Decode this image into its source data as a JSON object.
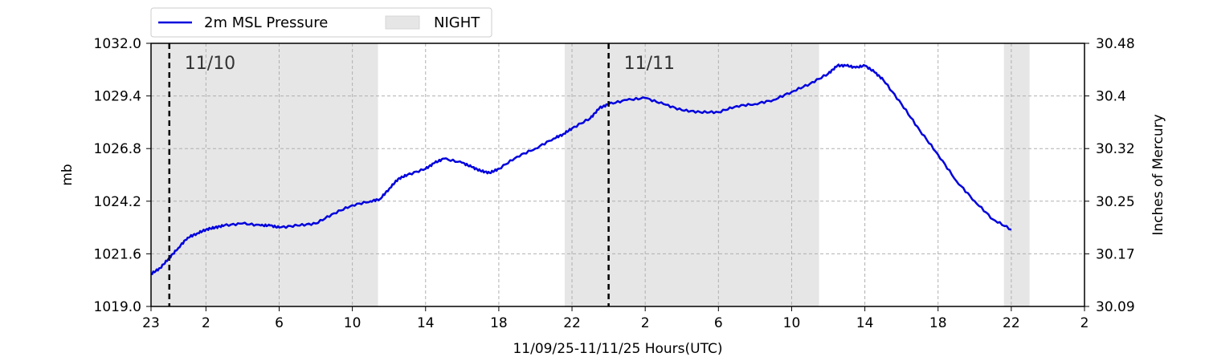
{
  "chart_data": {
    "type": "line",
    "title": "",
    "xlabel": "11/09/25-11/11/25  Hours(UTC)",
    "ylabel": "mb",
    "ylabel_right": "Inches of Mercury",
    "x_start": "2025-11-09T23:00Z",
    "xlim": [
      "2025-11-09T23:00Z",
      "2025-11-12T02:00Z"
    ],
    "ylim": [
      1019.0,
      1032.0
    ],
    "x_ticks": [
      {
        "t": "2025-11-09T23:00Z",
        "label": "23"
      },
      {
        "t": "2025-11-10T02:00Z",
        "label": "2"
      },
      {
        "t": "2025-11-10T06:00Z",
        "label": "6"
      },
      {
        "t": "2025-11-10T10:00Z",
        "label": "10"
      },
      {
        "t": "2025-11-10T14:00Z",
        "label": "14"
      },
      {
        "t": "2025-11-10T18:00Z",
        "label": "18"
      },
      {
        "t": "2025-11-10T22:00Z",
        "label": "22"
      },
      {
        "t": "2025-11-11T02:00Z",
        "label": "2"
      },
      {
        "t": "2025-11-11T06:00Z",
        "label": "6"
      },
      {
        "t": "2025-11-11T10:00Z",
        "label": "10"
      },
      {
        "t": "2025-11-11T14:00Z",
        "label": "14"
      },
      {
        "t": "2025-11-11T18:00Z",
        "label": "18"
      },
      {
        "t": "2025-11-11T22:00Z",
        "label": "22"
      },
      {
        "t": "2025-11-12T02:00Z",
        "label": "2"
      }
    ],
    "y_ticks": [
      {
        "v": 1019.0,
        "label": "1019.0"
      },
      {
        "v": 1021.6,
        "label": "1021.6"
      },
      {
        "v": 1024.2,
        "label": "1024.2"
      },
      {
        "v": 1026.8,
        "label": "1026.8"
      },
      {
        "v": 1029.4,
        "label": "1029.4"
      },
      {
        "v": 1032.0,
        "label": "1032.0"
      }
    ],
    "y2_ticks": [
      {
        "v": 1019.0,
        "label": "30.09"
      },
      {
        "v": 1021.6,
        "label": "30.17"
      },
      {
        "v": 1024.2,
        "label": "30.25"
      },
      {
        "v": 1026.8,
        "label": "30.32"
      },
      {
        "v": 1029.4,
        "label": "30.4"
      },
      {
        "v": 1032.0,
        "label": "30.48"
      }
    ],
    "grid": true,
    "legend_position": "top-left-outside",
    "series": [
      {
        "name": "2m MSL Pressure",
        "color": "#0000dd",
        "x": [
          "2025-11-09T23:00Z",
          "2025-11-09T23:30Z",
          "2025-11-10T00:00Z",
          "2025-11-10T00:30Z",
          "2025-11-10T01:00Z",
          "2025-11-10T01:30Z",
          "2025-11-10T02:00Z",
          "2025-11-10T02:30Z",
          "2025-11-10T03:00Z",
          "2025-11-10T04:00Z",
          "2025-11-10T05:00Z",
          "2025-11-10T05:30Z",
          "2025-11-10T06:00Z",
          "2025-11-10T07:00Z",
          "2025-11-10T08:00Z",
          "2025-11-10T09:00Z",
          "2025-11-10T10:00Z",
          "2025-11-10T11:00Z",
          "2025-11-10T11:30Z",
          "2025-11-10T12:00Z",
          "2025-11-10T12:30Z",
          "2025-11-10T13:00Z",
          "2025-11-10T14:00Z",
          "2025-11-10T14:30Z",
          "2025-11-10T15:00Z",
          "2025-11-10T16:00Z",
          "2025-11-10T16:30Z",
          "2025-11-10T17:00Z",
          "2025-11-10T17:30Z",
          "2025-11-10T18:00Z",
          "2025-11-10T19:00Z",
          "2025-11-10T20:00Z",
          "2025-11-10T21:00Z",
          "2025-11-10T21:30Z",
          "2025-11-10T22:00Z",
          "2025-11-10T23:00Z",
          "2025-11-10T23:30Z",
          "2025-11-11T00:00Z",
          "2025-11-11T01:00Z",
          "2025-11-11T02:00Z",
          "2025-11-11T03:00Z",
          "2025-11-11T04:00Z",
          "2025-11-11T05:00Z",
          "2025-11-11T06:00Z",
          "2025-11-11T07:00Z",
          "2025-11-11T08:00Z",
          "2025-11-11T09:00Z",
          "2025-11-11T10:00Z",
          "2025-11-11T11:00Z",
          "2025-11-11T12:00Z",
          "2025-11-11T12:30Z",
          "2025-11-11T13:00Z",
          "2025-11-11T13:30Z",
          "2025-11-11T14:00Z",
          "2025-11-11T14:30Z",
          "2025-11-11T15:00Z",
          "2025-11-11T16:00Z",
          "2025-11-11T17:00Z",
          "2025-11-11T18:00Z",
          "2025-11-11T19:00Z",
          "2025-11-11T20:00Z",
          "2025-11-11T21:00Z",
          "2025-11-11T22:00Z"
        ],
        "y": [
          1020.6,
          1020.9,
          1021.4,
          1021.9,
          1022.4,
          1022.6,
          1022.8,
          1022.9,
          1023.0,
          1023.1,
          1023.0,
          1023.0,
          1022.9,
          1023.0,
          1023.1,
          1023.6,
          1024.0,
          1024.2,
          1024.3,
          1024.8,
          1025.3,
          1025.5,
          1025.8,
          1026.1,
          1026.3,
          1026.1,
          1025.9,
          1025.7,
          1025.6,
          1025.8,
          1026.4,
          1026.8,
          1027.3,
          1027.5,
          1027.8,
          1028.3,
          1028.8,
          1029.0,
          1029.2,
          1029.3,
          1029.0,
          1028.7,
          1028.6,
          1028.6,
          1028.9,
          1029.0,
          1029.2,
          1029.6,
          1030.0,
          1030.5,
          1030.9,
          1030.9,
          1030.8,
          1030.9,
          1030.6,
          1030.2,
          1029.0,
          1027.7,
          1026.5,
          1025.2,
          1024.2,
          1023.3,
          1022.8
        ]
      }
    ],
    "night_shading": {
      "label": "NIGHT",
      "color": "#e6e6e6",
      "periods": [
        [
          "2025-11-09T23:00Z",
          "2025-11-10T11:24Z"
        ],
        [
          "2025-11-10T21:36Z",
          "2025-11-11T11:30Z"
        ],
        [
          "2025-11-11T21:36Z",
          "2025-11-11T23:00Z"
        ]
      ]
    },
    "day_markers": [
      {
        "t": "2025-11-10T00:00Z",
        "label": "11/10"
      },
      {
        "t": "2025-11-11T00:00Z",
        "label": "11/11"
      }
    ]
  }
}
